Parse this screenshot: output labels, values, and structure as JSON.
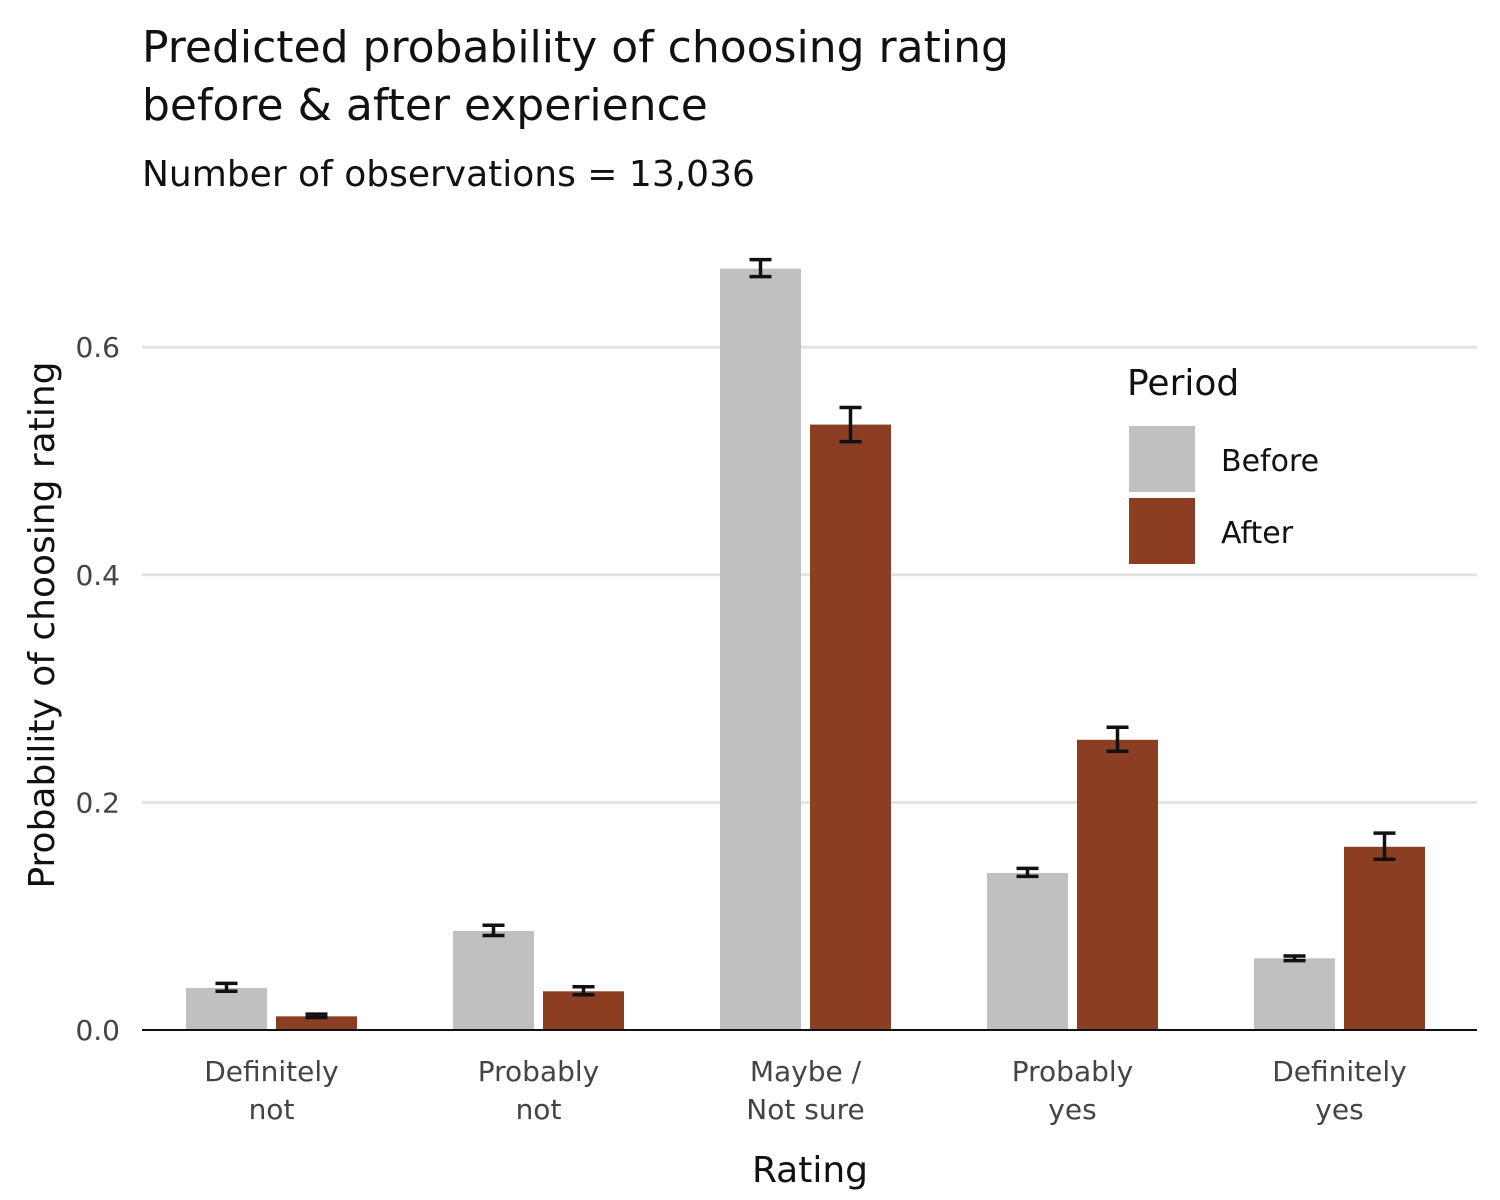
{
  "chart_data": {
    "type": "bar",
    "title_lines": [
      "Predicted probability of choosing rating",
      "before & after experience"
    ],
    "subtitle": "Number of observations = 13,036",
    "xlabel": "Rating",
    "ylabel": "Probability of choosing rating",
    "categories": [
      [
        "Definitely",
        "not"
      ],
      [
        "Probably",
        "not"
      ],
      [
        "Maybe /",
        "Not sure"
      ],
      [
        "Probably",
        "yes"
      ],
      [
        "Definitely",
        "yes"
      ]
    ],
    "ylim": [
      0,
      0.67
    ],
    "yticks": [
      0.0,
      0.2,
      0.4,
      0.6
    ],
    "ytick_labels": [
      "0.0",
      "0.2",
      "0.4",
      "0.6"
    ],
    "grid": true,
    "legend": {
      "title": "Period",
      "position": "top-right"
    },
    "series": [
      {
        "name": "Before",
        "color": "#c0c0c0",
        "values": [
          0.037,
          0.087,
          0.669,
          0.138,
          0.063
        ],
        "lower": [
          0.034,
          0.083,
          0.662,
          0.135,
          0.061
        ],
        "upper": [
          0.041,
          0.092,
          0.677,
          0.142,
          0.065
        ]
      },
      {
        "name": "After",
        "color": "#8b3e22",
        "values": [
          0.012,
          0.034,
          0.532,
          0.255,
          0.161
        ],
        "lower": [
          0.011,
          0.031,
          0.517,
          0.245,
          0.15
        ],
        "upper": [
          0.014,
          0.038,
          0.547,
          0.266,
          0.173
        ]
      }
    ]
  }
}
